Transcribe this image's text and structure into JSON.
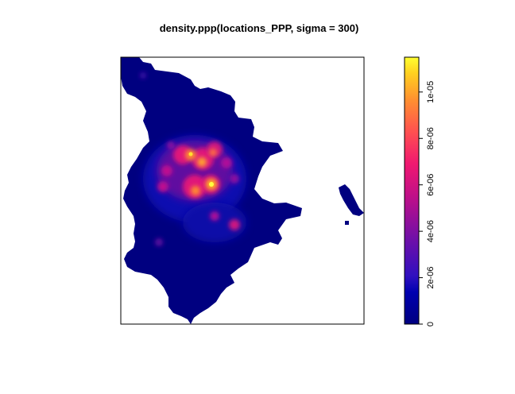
{
  "chart_data": {
    "type": "heatmap",
    "title": "density.ppp(locations_PPP, sigma = 300)",
    "xlabel": "",
    "ylabel": "",
    "legend": {
      "position": "right",
      "range": [
        0,
        1.15e-05
      ],
      "ticks": [
        {
          "value": 0,
          "label": "0"
        },
        {
          "value": 2e-06,
          "label": "2e-06"
        },
        {
          "value": 4e-06,
          "label": "4e-06"
        },
        {
          "value": 6e-06,
          "label": "6e-06"
        },
        {
          "value": 8e-06,
          "label": "8e-06"
        },
        {
          "value": 1e-05,
          "label": "1e-05"
        }
      ],
      "colormap": [
        "#00007f",
        "#1a1aa0",
        "#5a0f9e",
        "#a0128f",
        "#e0157a",
        "#ff4a55",
        "#ff8a30",
        "#ffc020",
        "#ffff00"
      ]
    },
    "colors": {
      "region_background": "#000080",
      "plot_frame": "#000000"
    }
  }
}
